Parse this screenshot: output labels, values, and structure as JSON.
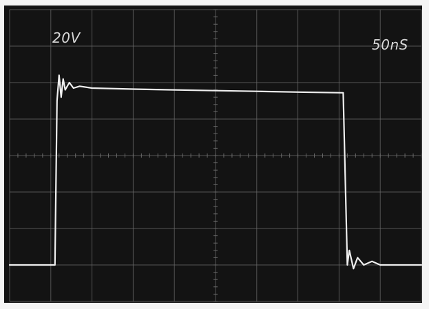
{
  "chart_data": {
    "type": "line",
    "volts_per_div_label": "20V",
    "time_per_div_label": "50nS",
    "divisions": {
      "x": 10,
      "y": 8
    },
    "grid": true,
    "units": {
      "x": "div",
      "y": "div"
    },
    "series": [
      {
        "x": [
          0.0,
          1.1,
          1.15,
          1.2,
          1.25,
          1.3,
          1.35,
          1.45,
          1.55,
          1.7,
          2.0,
          3.0,
          4.0,
          5.0,
          6.0,
          7.0,
          8.1,
          8.2,
          8.25,
          8.35,
          8.45,
          8.6,
          8.8,
          9.0,
          10.0
        ],
        "y": [
          1.0,
          1.0,
          5.5,
          6.2,
          5.6,
          6.1,
          5.8,
          6.0,
          5.85,
          5.9,
          5.85,
          5.82,
          5.8,
          5.78,
          5.76,
          5.74,
          5.72,
          1.0,
          1.4,
          0.9,
          1.2,
          1.0,
          1.1,
          1.0,
          1.0
        ]
      }
    ],
    "colors": {
      "screen": "#131313",
      "grid": "#6a6a6a",
      "trace": "#efefef",
      "label": "#d9d9d9"
    }
  }
}
